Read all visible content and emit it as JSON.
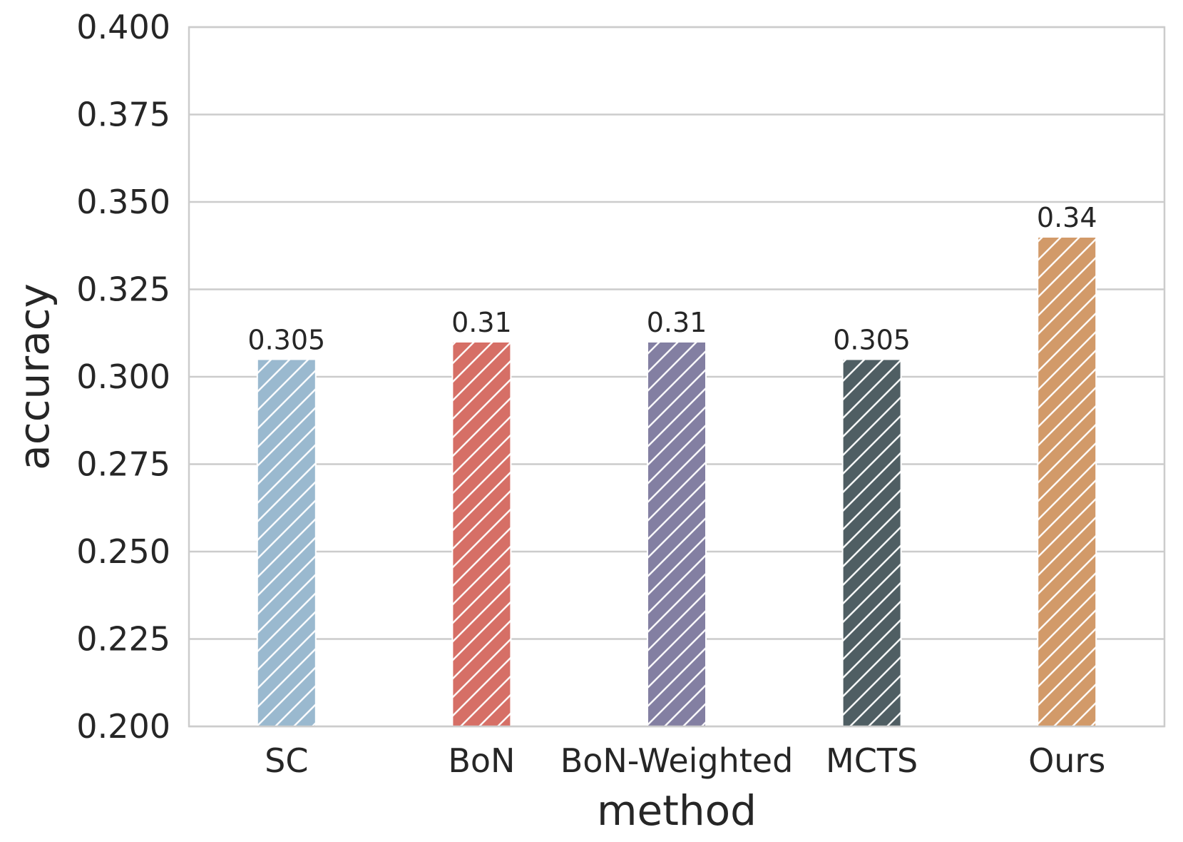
{
  "chart_data": {
    "type": "bar",
    "title": "",
    "xlabel": "method",
    "ylabel": "accuracy",
    "categories": [
      "SC",
      "BoN",
      "BoN-Weighted",
      "MCTS",
      "Ours"
    ],
    "values": [
      0.305,
      0.31,
      0.31,
      0.305,
      0.34
    ],
    "value_labels": [
      "0.305",
      "0.31",
      "0.31",
      "0.305",
      "0.34"
    ],
    "colors": [
      "#9ab9cf",
      "#d66f66",
      "#837fa2",
      "#4f5e63",
      "#d29a69"
    ],
    "ylim": [
      0.2,
      0.4
    ],
    "yticks": [
      0.2,
      0.225,
      0.25,
      0.275,
      0.3,
      0.325,
      0.35,
      0.375,
      0.4
    ],
    "ytick_labels": [
      "0.200",
      "0.225",
      "0.250",
      "0.275",
      "0.300",
      "0.325",
      "0.350",
      "0.375",
      "0.400"
    ],
    "grid": true,
    "hatch": "diagonal"
  }
}
